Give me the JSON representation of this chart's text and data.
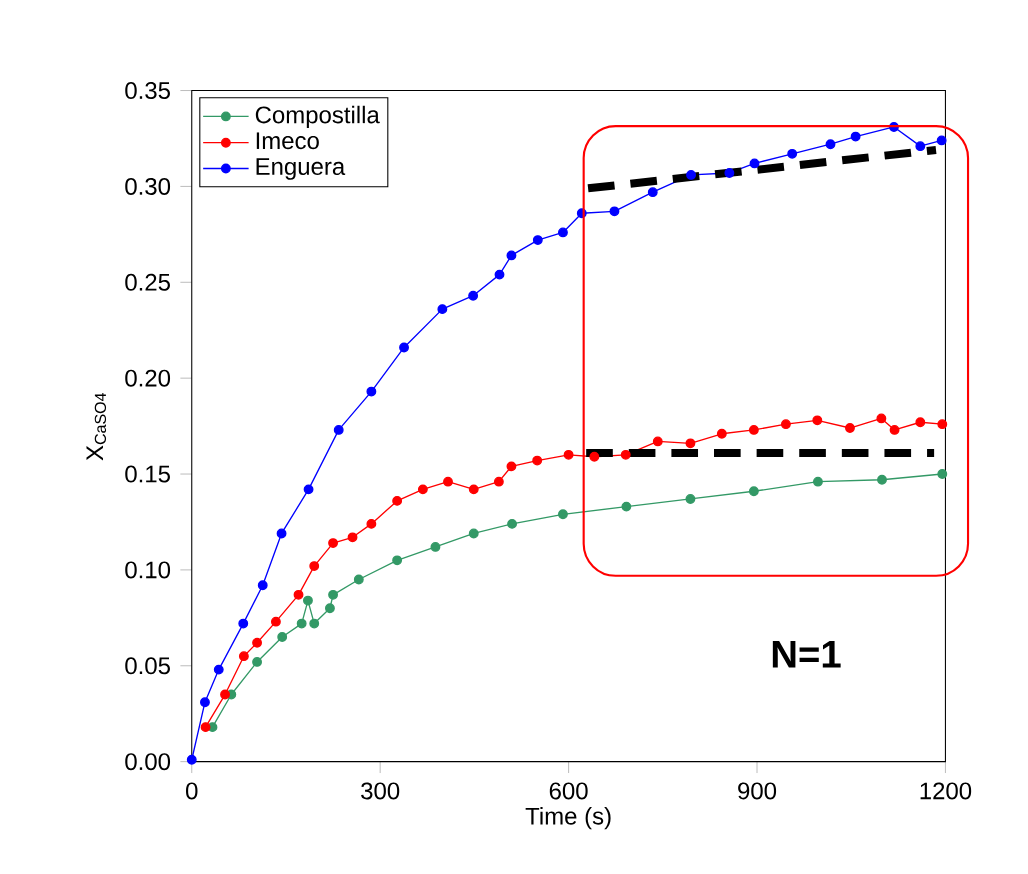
{
  "chart_data": {
    "type": "line",
    "xlabel": "Time (s)",
    "ylabel": "X$_{CaSO4}$",
    "xlim": [
      0,
      1200
    ],
    "ylim": [
      0,
      0.35
    ],
    "xticks": [
      0,
      300,
      600,
      900,
      1200
    ],
    "yticks": [
      {
        "value": 0,
        "label": "0.00"
      },
      {
        "value": 0.05,
        "label": "0.05"
      },
      {
        "value": 0.1,
        "label": "0.10"
      },
      {
        "value": 0.15,
        "label": "0.15"
      },
      {
        "value": 0.2,
        "label": "0.20"
      },
      {
        "value": 0.25,
        "label": "0.25"
      },
      {
        "value": 0.3,
        "label": "0.30"
      },
      {
        "value": 0.35,
        "label": "0.35"
      }
    ],
    "legend": "top left",
    "marker": "circle",
    "line_style": "solid",
    "annotations": [
      "N=1"
    ],
    "series": [
      {
        "name": "Compostilla",
        "color": "#339966",
        "x": [
          33,
          63,
          104,
          144,
          175,
          185,
          195,
          220,
          225,
          266,
          327,
          388,
          449,
          510,
          591,
          692,
          794,
          895,
          997,
          1099,
          1195
        ],
        "values": [
          0.018,
          0.035,
          0.052,
          0.065,
          0.072,
          0.084,
          0.072,
          0.08,
          0.087,
          0.095,
          0.105,
          0.112,
          0.119,
          0.124,
          0.129,
          0.133,
          0.137,
          0.141,
          0.146,
          0.147,
          0.15
        ]
      },
      {
        "name": "Imeco",
        "color": "#ff0000",
        "x": [
          22,
          53,
          83,
          104,
          134,
          170,
          195,
          225,
          256,
          286,
          327,
          368,
          408,
          449,
          489,
          509,
          550,
          600,
          641,
          691,
          742,
          794,
          844,
          895,
          946,
          996,
          1048,
          1098,
          1119,
          1160,
          1195
        ],
        "values": [
          0.018,
          0.035,
          0.055,
          0.062,
          0.073,
          0.087,
          0.102,
          0.114,
          0.117,
          0.124,
          0.136,
          0.142,
          0.146,
          0.142,
          0.146,
          0.154,
          0.157,
          0.16,
          0.159,
          0.16,
          0.167,
          0.166,
          0.171,
          0.173,
          0.176,
          0.178,
          0.174,
          0.179,
          0.173,
          0.177,
          0.176
        ]
      },
      {
        "name": "Enguera",
        "color": "#0000ff",
        "x": [
          0,
          21,
          43,
          82,
          113,
          143,
          186,
          234,
          286,
          338,
          399,
          448,
          490,
          509,
          551,
          591,
          621,
          673,
          734,
          795,
          856,
          896,
          956,
          1017,
          1057,
          1118,
          1160,
          1194
        ],
        "values": [
          0.001,
          0.031,
          0.048,
          0.072,
          0.092,
          0.119,
          0.142,
          0.173,
          0.193,
          0.216,
          0.236,
          0.243,
          0.254,
          0.264,
          0.272,
          0.276,
          0.286,
          0.287,
          0.297,
          0.306,
          0.307,
          0.312,
          0.317,
          0.322,
          0.326,
          0.331,
          0.321,
          0.324
        ]
      },
      {
        "type": "line",
        "color": "#000000",
        "marker": "none",
        "line_style": "dashed",
        "x": [
          631,
          1185
        ],
        "values": [
          0.299,
          0.319
        ]
      },
      {
        "type": "line",
        "color": "#000000",
        "marker": "none",
        "line_style": "dashed",
        "x": [
          628,
          1182
        ],
        "values": [
          0.161,
          0.161
        ]
      }
    ]
  }
}
